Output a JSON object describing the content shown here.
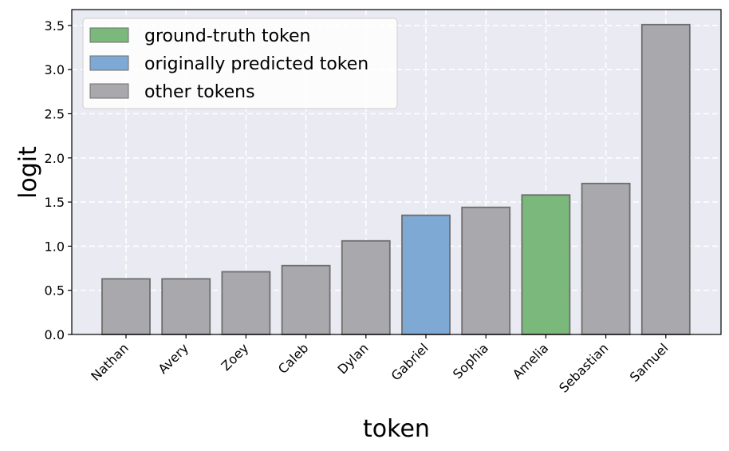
{
  "chart_data": {
    "type": "bar",
    "xlabel": "token",
    "ylabel": "logit",
    "ylim": [
      0,
      3.68
    ],
    "yticks": [
      "0.0",
      "0.5",
      "1.0",
      "1.5",
      "2.0",
      "2.5",
      "3.0",
      "3.5"
    ],
    "categories": [
      "Nathan",
      "Avery",
      "Zoey",
      "Caleb",
      "Dylan",
      "Gabriel",
      "Sophia",
      "Amelia",
      "Sebastian",
      "Samuel"
    ],
    "values": [
      0.63,
      0.63,
      0.71,
      0.78,
      1.06,
      1.35,
      1.44,
      1.58,
      1.71,
      3.51
    ],
    "bar_roles": [
      "other",
      "other",
      "other",
      "other",
      "other",
      "predicted",
      "other",
      "truth",
      "other",
      "other"
    ],
    "grid": true,
    "legend_position": "top-left",
    "legend": [
      {
        "role": "truth",
        "label": "ground-truth token"
      },
      {
        "role": "predicted",
        "label": "originally predicted token"
      },
      {
        "role": "other",
        "label": "other tokens"
      }
    ],
    "colors": {
      "truth": "#7bb87b",
      "predicted": "#7ea9d4",
      "other": "#a9a8ac",
      "edge": "#6e6e6e",
      "plot_bg": "#e9eaf2",
      "grid": "#ffffff"
    }
  }
}
